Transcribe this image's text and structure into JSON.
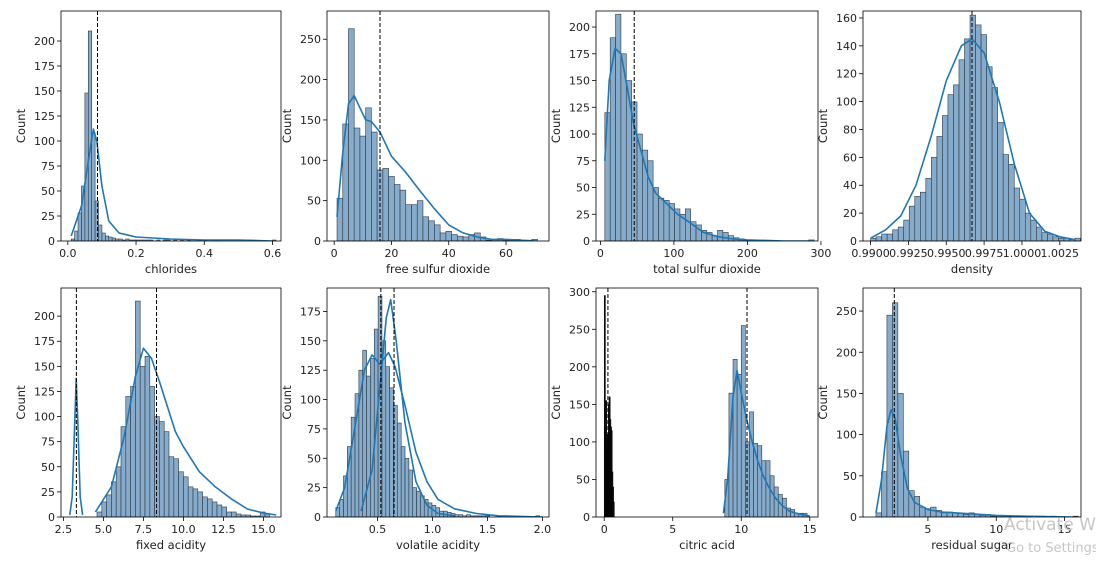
{
  "chart_data": [
    {
      "type": "histogram",
      "xlabel": "chlorides",
      "ylabel": "Count",
      "xlim": [
        -0.02,
        0.625
      ],
      "ylim": [
        0,
        230
      ],
      "xticks": [
        0.0,
        0.2,
        0.4,
        0.6
      ],
      "xtick_labels": [
        "0.0",
        "0.2",
        "0.4",
        "0.6"
      ],
      "yticks": [
        0,
        25,
        50,
        75,
        100,
        125,
        150,
        175,
        200
      ],
      "ytick_labels": [
        "0",
        "25",
        "50",
        "75",
        "100",
        "125",
        "150",
        "175",
        "200"
      ],
      "bin_start": 0.01,
      "bin_width": 0.01,
      "counts": [
        2,
        10,
        28,
        55,
        148,
        210,
        108,
        40,
        16,
        8,
        5,
        4,
        3,
        2,
        2,
        1,
        2,
        1,
        1,
        1,
        1,
        1,
        1,
        1,
        0,
        1,
        0,
        1,
        1,
        0,
        1,
        0,
        1,
        0,
        1,
        0,
        0,
        1,
        0,
        1,
        0,
        0,
        1,
        0,
        0,
        0,
        0,
        0,
        0,
        0,
        0,
        0,
        0,
        0,
        0,
        0,
        0,
        0,
        0,
        1
      ],
      "kde": [
        [
          0.01,
          5
        ],
        [
          0.04,
          35
        ],
        [
          0.06,
          80
        ],
        [
          0.075,
          112
        ],
        [
          0.085,
          100
        ],
        [
          0.1,
          55
        ],
        [
          0.12,
          20
        ],
        [
          0.15,
          8
        ],
        [
          0.2,
          4
        ],
        [
          0.3,
          2
        ],
        [
          0.4,
          1
        ],
        [
          0.5,
          1
        ],
        [
          0.6,
          0
        ]
      ],
      "vlines": [
        0.087
      ]
    },
    {
      "type": "histogram",
      "xlabel": "free sulfur dioxide",
      "ylabel": "Count",
      "xlim": [
        -2.5,
        75
      ],
      "ylim": [
        0,
        285
      ],
      "xticks": [
        0,
        20,
        40,
        60
      ],
      "xtick_labels": [
        "0",
        "20",
        "40",
        "60"
      ],
      "yticks": [
        0,
        50,
        100,
        150,
        200,
        250
      ],
      "ytick_labels": [
        "0",
        "50",
        "100",
        "150",
        "200",
        "250"
      ],
      "bin_start": 1,
      "bin_width": 2,
      "counts": [
        53,
        145,
        263,
        140,
        130,
        165,
        135,
        88,
        90,
        80,
        70,
        63,
        45,
        45,
        50,
        30,
        25,
        20,
        10,
        12,
        8,
        6,
        5,
        8,
        10,
        5,
        1,
        2,
        3,
        1,
        1,
        2,
        1,
        1,
        2
      ],
      "kde": [
        [
          1,
          30
        ],
        [
          3,
          110
        ],
        [
          5,
          170
        ],
        [
          7,
          180
        ],
        [
          9,
          165
        ],
        [
          11,
          150
        ],
        [
          13,
          148
        ],
        [
          16,
          135
        ],
        [
          20,
          105
        ],
        [
          25,
          85
        ],
        [
          30,
          62
        ],
        [
          35,
          40
        ],
        [
          40,
          20
        ],
        [
          45,
          10
        ],
        [
          50,
          5
        ],
        [
          55,
          2
        ],
        [
          60,
          2
        ],
        [
          65,
          1
        ],
        [
          70,
          0
        ]
      ],
      "vlines": [
        16
      ]
    },
    {
      "type": "histogram",
      "xlabel": "total sulfur dioxide",
      "ylabel": "Count",
      "xlim": [
        -6,
        296
      ],
      "ylim": [
        0,
        215
      ],
      "xticks": [
        0,
        100,
        200,
        300
      ],
      "xtick_labels": [
        "0",
        "100",
        "200",
        "300"
      ],
      "yticks": [
        0,
        25,
        50,
        75,
        100,
        125,
        150,
        175,
        200
      ],
      "ytick_labels": [
        "0",
        "25",
        "50",
        "75",
        "100",
        "125",
        "150",
        "175",
        "200"
      ],
      "bin_start": 6,
      "bin_width": 7.3,
      "counts": [
        120,
        190,
        212,
        175,
        150,
        130,
        100,
        85,
        75,
        50,
        40,
        38,
        35,
        30,
        25,
        30,
        18,
        15,
        10,
        8,
        5,
        10,
        8,
        5,
        3,
        2,
        1,
        1,
        1,
        0,
        0,
        0,
        0,
        0,
        0,
        0,
        0,
        0,
        1
      ],
      "kde": [
        [
          6,
          75
        ],
        [
          12,
          150
        ],
        [
          20,
          180
        ],
        [
          28,
          175
        ],
        [
          36,
          145
        ],
        [
          45,
          110
        ],
        [
          55,
          85
        ],
        [
          65,
          60
        ],
        [
          75,
          45
        ],
        [
          90,
          35
        ],
        [
          105,
          25
        ],
        [
          120,
          18
        ],
        [
          140,
          8
        ],
        [
          160,
          4
        ],
        [
          180,
          2
        ],
        [
          200,
          1
        ],
        [
          250,
          0
        ],
        [
          290,
          0
        ]
      ],
      "vlines": [
        46
      ]
    },
    {
      "type": "histogram",
      "xlabel": "density",
      "ylabel": "Count",
      "xlim": [
        0.9895,
        1.0039
      ],
      "ylim": [
        0,
        165
      ],
      "xticks": [
        0.99,
        0.9925,
        0.995,
        0.9975,
        1.0,
        1.0025
      ],
      "xtick_labels": [
        "0.9900",
        "0.9925",
        "0.9950",
        "0.9975",
        "1.0000",
        "1.0025"
      ],
      "yticks": [
        0,
        20,
        40,
        60,
        80,
        100,
        120,
        140,
        160
      ],
      "ytick_labels": [
        "0",
        "20",
        "40",
        "60",
        "80",
        "100",
        "120",
        "140",
        "160"
      ],
      "bin_start": 0.99,
      "bin_width": 0.000365,
      "counts": [
        2,
        3,
        5,
        5,
        8,
        10,
        15,
        25,
        32,
        35,
        45,
        60,
        75,
        90,
        105,
        112,
        130,
        145,
        162,
        155,
        148,
        125,
        110,
        85,
        62,
        55,
        38,
        30,
        20,
        15,
        10,
        6,
        5,
        3,
        2,
        2,
        1,
        2
      ],
      "kde": [
        [
          0.99,
          2
        ],
        [
          0.991,
          8
        ],
        [
          0.992,
          18
        ],
        [
          0.993,
          40
        ],
        [
          0.994,
          75
        ],
        [
          0.995,
          115
        ],
        [
          0.996,
          140
        ],
        [
          0.9967,
          145
        ],
        [
          0.9975,
          135
        ],
        [
          0.9985,
          100
        ],
        [
          0.9995,
          55
        ],
        [
          1.0005,
          20
        ],
        [
          1.0015,
          7
        ],
        [
          1.0025,
          3
        ],
        [
          1.0035,
          1
        ]
      ],
      "vlines": [
        0.9967
      ]
    },
    {
      "type": "histogram",
      "xlabel": "fixed acidity",
      "ylabel": "Count",
      "xlim": [
        2.35,
        16.1
      ],
      "ylim": [
        0,
        228
      ],
      "xticks": [
        2.5,
        5.0,
        7.5,
        10.0,
        12.5,
        15.0
      ],
      "xtick_labels": [
        "2.5",
        "5.0",
        "7.5",
        "10.0",
        "12.5",
        "15.0"
      ],
      "yticks": [
        0,
        25,
        50,
        75,
        100,
        125,
        150,
        175,
        200
      ],
      "ytick_labels": [
        "0",
        "25",
        "50",
        "75",
        "100",
        "125",
        "150",
        "175",
        "200"
      ],
      "bin_start": 4.6,
      "bin_width": 0.3,
      "counts": [
        5,
        15,
        22,
        35,
        50,
        90,
        120,
        130,
        215,
        150,
        160,
        130,
        100,
        95,
        85,
        60,
        58,
        45,
        40,
        30,
        28,
        25,
        20,
        18,
        15,
        12,
        10,
        5,
        5,
        3,
        2,
        2,
        1,
        1,
        5,
        3
      ],
      "kde": [
        [
          4.5,
          5
        ],
        [
          5.5,
          30
        ],
        [
          6.3,
          80
        ],
        [
          7.0,
          140
        ],
        [
          7.5,
          168
        ],
        [
          8.0,
          158
        ],
        [
          8.5,
          135
        ],
        [
          9.0,
          110
        ],
        [
          9.5,
          85
        ],
        [
          10.0,
          70
        ],
        [
          11.0,
          45
        ],
        [
          12.0,
          30
        ],
        [
          13.0,
          18
        ],
        [
          14.0,
          8
        ],
        [
          15.0,
          4
        ],
        [
          15.8,
          2
        ]
      ],
      "kde2": [
        [
          2.9,
          2
        ],
        [
          3.05,
          20
        ],
        [
          3.2,
          90
        ],
        [
          3.3,
          138
        ],
        [
          3.4,
          95
        ],
        [
          3.55,
          20
        ],
        [
          3.7,
          2
        ]
      ],
      "vlines": [
        3.31,
        8.32
      ]
    },
    {
      "type": "histogram",
      "xlabel": "volatile acidity",
      "ylabel": "Count",
      "xlim": [
        0.04,
        2.06
      ],
      "ylim": [
        0,
        195
      ],
      "xticks": [
        0.5,
        1.0,
        1.5,
        2.0
      ],
      "xtick_labels": [
        "0.5",
        "1.0",
        "1.5",
        "2.0"
      ],
      "yticks": [
        0,
        25,
        50,
        75,
        100,
        125,
        150,
        175
      ],
      "ytick_labels": [
        "0",
        "25",
        "50",
        "75",
        "100",
        "125",
        "150",
        "175"
      ],
      "bin_start": 0.12,
      "bin_width": 0.035,
      "counts": [
        8,
        15,
        35,
        60,
        85,
        105,
        125,
        142,
        120,
        135,
        160,
        188,
        150,
        128,
        110,
        95,
        80,
        60,
        50,
        40,
        25,
        22,
        18,
        15,
        12,
        10,
        8,
        5,
        5,
        4,
        3,
        2,
        2,
        1,
        2,
        1,
        1,
        1,
        1,
        1,
        0,
        0,
        1,
        0,
        0,
        0,
        0,
        0,
        0,
        0,
        0,
        0,
        1
      ],
      "kde": [
        [
          0.12,
          5
        ],
        [
          0.2,
          25
        ],
        [
          0.3,
          80
        ],
        [
          0.38,
          125
        ],
        [
          0.45,
          138
        ],
        [
          0.52,
          130
        ],
        [
          0.6,
          140
        ],
        [
          0.66,
          128
        ],
        [
          0.75,
          95
        ],
        [
          0.85,
          55
        ],
        [
          0.95,
          30
        ],
        [
          1.05,
          15
        ],
        [
          1.2,
          7
        ],
        [
          1.4,
          3
        ],
        [
          1.6,
          1
        ],
        [
          2.0,
          0
        ]
      ],
      "kde2": [
        [
          0.35,
          5
        ],
        [
          0.45,
          40
        ],
        [
          0.52,
          110
        ],
        [
          0.58,
          170
        ],
        [
          0.62,
          185
        ],
        [
          0.67,
          150
        ],
        [
          0.75,
          80
        ],
        [
          0.85,
          30
        ],
        [
          0.95,
          10
        ],
        [
          1.05,
          3
        ],
        [
          1.2,
          1
        ]
      ],
      "vlines": [
        0.53,
        0.65
      ]
    },
    {
      "type": "histogram",
      "xlabel": "citric acid",
      "ylabel": "Count",
      "xlim": [
        -0.6,
        15.6
      ],
      "ylim": [
        0,
        305
      ],
      "xticks": [
        0,
        5,
        10,
        15
      ],
      "xtick_labels": [
        "0",
        "5",
        "10",
        "15"
      ],
      "yticks": [
        0,
        50,
        100,
        150,
        200,
        250,
        300
      ],
      "ytick_labels": [
        "0",
        "50",
        "100",
        "150",
        "200",
        "250",
        "300"
      ],
      "bin_start": 8.8,
      "bin_width": 0.3,
      "counts": [
        50,
        165,
        210,
        190,
        255,
        100,
        140,
        98,
        95,
        75,
        75,
        55,
        40,
        30,
        25,
        12,
        10,
        5,
        5,
        5
      ],
      "kde": [
        [
          8.7,
          5
        ],
        [
          9.0,
          50
        ],
        [
          9.4,
          160
        ],
        [
          9.7,
          195
        ],
        [
          10.0,
          165
        ],
        [
          10.4,
          130
        ],
        [
          10.8,
          100
        ],
        [
          11.2,
          75
        ],
        [
          11.6,
          55
        ],
        [
          12.0,
          40
        ],
        [
          12.5,
          25
        ],
        [
          13.0,
          15
        ],
        [
          13.5,
          8
        ],
        [
          14.0,
          5
        ],
        [
          14.5,
          3
        ],
        [
          15.0,
          1
        ]
      ],
      "dense_bars": [
        [
          0.0,
          295
        ],
        [
          0.05,
          120
        ],
        [
          0.1,
          155
        ],
        [
          0.15,
          90
        ],
        [
          0.2,
          110
        ],
        [
          0.25,
          100
        ],
        [
          0.3,
          150
        ],
        [
          0.35,
          160
        ],
        [
          0.4,
          130
        ],
        [
          0.45,
          120
        ],
        [
          0.5,
          115
        ],
        [
          0.55,
          60
        ],
        [
          0.6,
          40
        ],
        [
          0.65,
          20
        ]
      ],
      "vlines": [
        0.27,
        10.42
      ]
    },
    {
      "type": "histogram",
      "xlabel": "residual sugar",
      "ylabel": "Count",
      "xlim": [
        0.25,
        16.2
      ],
      "ylim": [
        0,
        278
      ],
      "xticks": [
        5,
        10,
        15
      ],
      "xtick_labels": [
        "5",
        "10",
        "15"
      ],
      "yticks": [
        0,
        50,
        100,
        150,
        200,
        250
      ],
      "ytick_labels": [
        "0",
        "50",
        "100",
        "150",
        "200",
        "250"
      ],
      "bin_start": 1.2,
      "bin_width": 0.4,
      "counts": [
        5,
        55,
        245,
        260,
        150,
        80,
        32,
        25,
        12,
        10,
        12,
        8,
        5,
        6,
        5,
        4,
        3,
        5,
        3,
        2,
        3,
        1,
        2,
        2,
        1,
        1,
        1,
        1,
        0,
        1,
        1,
        0,
        1,
        0,
        0,
        0,
        1
      ],
      "kde": [
        [
          1.2,
          5
        ],
        [
          1.6,
          45
        ],
        [
          2.0,
          110
        ],
        [
          2.3,
          130
        ],
        [
          2.6,
          120
        ],
        [
          3.0,
          75
        ],
        [
          3.5,
          35
        ],
        [
          4.0,
          18
        ],
        [
          5.0,
          9
        ],
        [
          6.0,
          6
        ],
        [
          8.0,
          4
        ],
        [
          10.0,
          2
        ],
        [
          12.0,
          1
        ],
        [
          15.5,
          0
        ]
      ],
      "vlines": [
        2.54
      ]
    }
  ],
  "overlay": {
    "watermark_line1": "Activate W",
    "watermark_line2": "Go to Settings"
  }
}
